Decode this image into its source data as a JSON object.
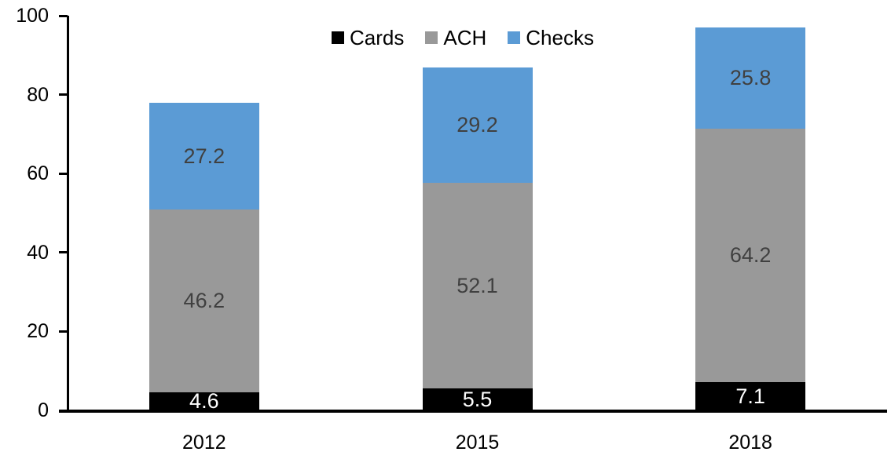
{
  "chart_data": {
    "type": "bar",
    "stacked": true,
    "title": "",
    "categories": [
      "2012",
      "2015",
      "2018"
    ],
    "series": [
      {
        "name": "Cards",
        "values": [
          4.6,
          5.5,
          7.1
        ],
        "color": "#000000",
        "label_color": "#ffffff"
      },
      {
        "name": "ACH",
        "values": [
          46.2,
          52.1,
          64.2
        ],
        "color": "#999999",
        "label_color": "#404040"
      },
      {
        "name": "Checks",
        "values": [
          27.2,
          29.2,
          25.8
        ],
        "color": "#5B9BD5",
        "label_color": "#404040"
      }
    ],
    "data_labels": [
      "4.6",
      "5.5",
      "7.1",
      "46.2",
      "52.1",
      "64.2",
      "27.2",
      "29.2",
      "25.8"
    ],
    "y_axis": {
      "min": 0,
      "max": 100,
      "ticks": [
        "0",
        "20",
        "40",
        "60",
        "80",
        "100"
      ]
    },
    "x_axis": {
      "tick_labels": [
        "2012",
        "2015",
        "2018"
      ]
    },
    "legend": {
      "position": "top-center",
      "labels": [
        "Cards",
        "ACH",
        "Checks"
      ]
    },
    "grid": false,
    "axis_color": "#000000",
    "text_color": "#000000",
    "background_color": "#ffffff"
  }
}
